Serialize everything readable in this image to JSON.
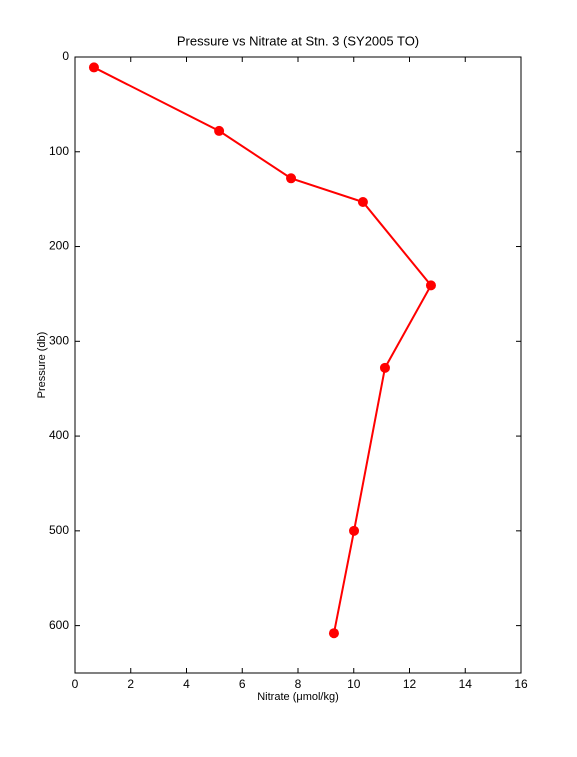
{
  "chart_data": {
    "type": "line",
    "title": "Pressure vs Nitrate at Stn. 3 (SY2005 TO)",
    "x_label": "Nitrate (μmol/kg)",
    "y_label": "Pressure (db)",
    "x": [
      0.68,
      5.17,
      7.75,
      10.33,
      12.77,
      11.12,
      10.01,
      9.29
    ],
    "series": [
      {
        "color": "#ff0000",
        "values": [
          11,
          78,
          128,
          153,
          241,
          328,
          500,
          608
        ]
      }
    ],
    "xlim": [
      0,
      16
    ],
    "xticks": [
      0,
      2,
      4,
      6,
      8,
      10,
      12,
      14,
      16
    ],
    "ylim": [
      0,
      650
    ],
    "yticks": [
      0,
      100,
      200,
      300,
      400,
      500,
      600
    ],
    "y_reversed": true,
    "grid": false
  }
}
